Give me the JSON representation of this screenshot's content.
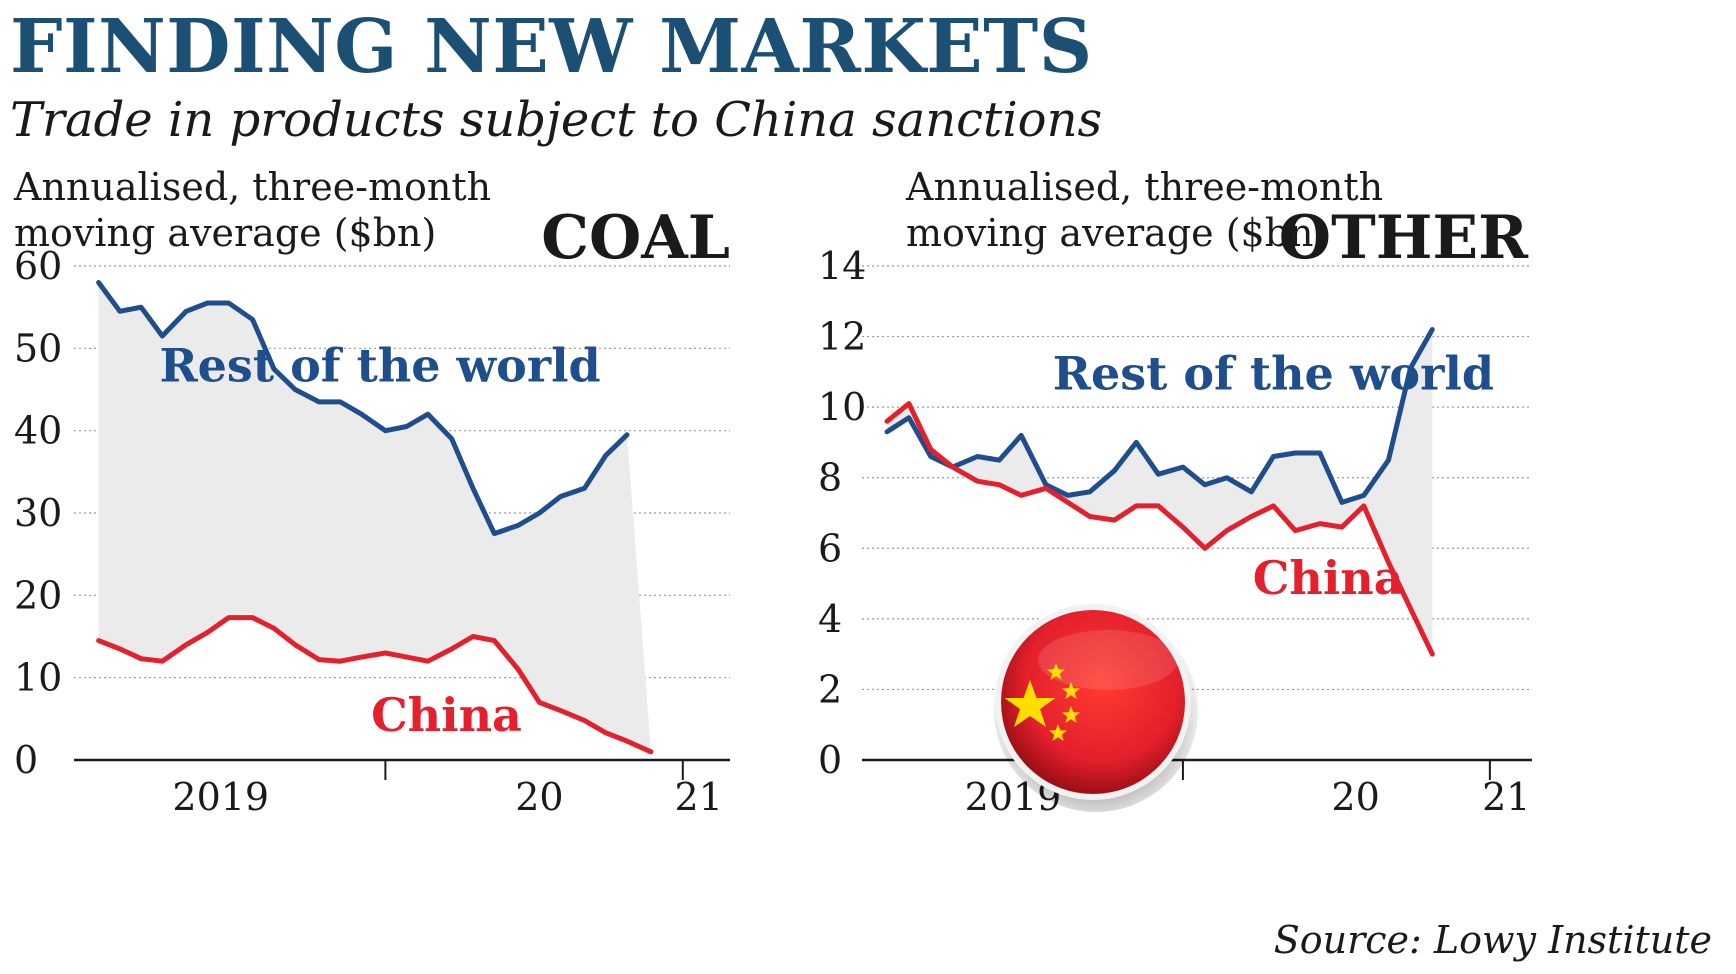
{
  "header": {
    "title": "FINDING NEW MARKETS",
    "subtitle": "Trade in products subject to China sanctions"
  },
  "source": "Source: Lowy Institute",
  "colors": {
    "title": "#1b4f73",
    "rest_of_world": "#1f4e8c",
    "china": "#e3202c",
    "fill": "#ebebeb",
    "grid": "#9a9a9a"
  },
  "flag_icon": "china-flag-icon",
  "chart_data": [
    {
      "type": "line",
      "title": "COAL",
      "ylabel_lines": [
        "Annualised, three-month",
        "moving average ($bn)"
      ],
      "ylim": [
        0,
        60
      ],
      "yticks": [
        0,
        10,
        20,
        30,
        40,
        50,
        60
      ],
      "xlim": [
        2018.8,
        2021.15
      ],
      "xtick_labels": [
        {
          "x": 2019.3,
          "label": "2019"
        },
        {
          "x": 2020.5,
          "label": "20"
        },
        {
          "x": 2021.1,
          "label": "21"
        }
      ],
      "xtick_marks": [
        2019.92,
        2021.04
      ],
      "grid": true,
      "shaded_between_series": true,
      "series": [
        {
          "name": "Rest of the world",
          "label_anchor": {
            "x": 2019.9,
            "y": 46
          },
          "x": [
            2018.84,
            2018.92,
            2019.0,
            2019.08,
            2019.17,
            2019.25,
            2019.33,
            2019.42,
            2019.5,
            2019.58,
            2019.67,
            2019.75,
            2019.83,
            2019.92,
            2020.0,
            2020.08,
            2020.17,
            2020.25,
            2020.33,
            2020.42,
            2020.5,
            2020.58,
            2020.67,
            2020.75,
            2020.83,
            2020.92,
            2021.0,
            2021.08
          ],
          "values": [
            58,
            54.5,
            55,
            51.5,
            54.5,
            55.5,
            55.5,
            53.5,
            47.5,
            45,
            43.5,
            43.5,
            42,
            40,
            40.5,
            42,
            39,
            33,
            27.5,
            28.5,
            30,
            32,
            33,
            37,
            39.5,
            null,
            null,
            null
          ]
        },
        {
          "name": "China",
          "label_anchor": {
            "x": 2020.15,
            "y": 3.5
          },
          "x": [
            2018.84,
            2018.92,
            2019.0,
            2019.08,
            2019.17,
            2019.25,
            2019.33,
            2019.42,
            2019.5,
            2019.58,
            2019.67,
            2019.75,
            2019.83,
            2019.92,
            2020.0,
            2020.08,
            2020.17,
            2020.25,
            2020.33,
            2020.42,
            2020.5,
            2020.58,
            2020.67,
            2020.75,
            2020.83,
            2020.92,
            2021.0,
            2021.08
          ],
          "values": [
            14.5,
            13.5,
            12.3,
            12,
            14,
            15.5,
            17.3,
            17.3,
            16,
            14,
            12.2,
            12,
            12.5,
            13,
            12.5,
            12,
            13.5,
            15,
            14.5,
            11,
            7,
            6,
            4.8,
            3.3,
            2.3,
            1,
            null,
            null
          ]
        }
      ]
    },
    {
      "type": "line",
      "title": "OTHER",
      "ylabel_lines": [
        "Annualised, three-month",
        "moving average ($bn)"
      ],
      "ylim": [
        0,
        14
      ],
      "yticks": [
        0,
        2,
        4,
        6,
        8,
        10,
        12,
        14
      ],
      "xlim": [
        2018.8,
        2021.15
      ],
      "xtick_labels": [
        {
          "x": 2019.3,
          "label": "2019"
        },
        {
          "x": 2020.55,
          "label": "20"
        },
        {
          "x": 2021.1,
          "label": "21"
        }
      ],
      "xtick_marks": [
        2019.92,
        2021.04
      ],
      "grid": true,
      "shaded_between_series": true,
      "series": [
        {
          "name": "Rest of the world",
          "label_anchor": {
            "x": 2020.25,
            "y": 10.5
          },
          "x": [
            2018.84,
            2018.92,
            2019.0,
            2019.08,
            2019.17,
            2019.25,
            2019.33,
            2019.42,
            2019.5,
            2019.58,
            2019.67,
            2019.75,
            2019.83,
            2019.92,
            2020.0,
            2020.08,
            2020.17,
            2020.25,
            2020.33,
            2020.42,
            2020.5,
            2020.58,
            2020.67,
            2020.75,
            2020.83,
            2020.92,
            2021.0,
            2021.08
          ],
          "values": [
            9.3,
            9.7,
            8.6,
            8.3,
            8.6,
            8.5,
            9.2,
            7.8,
            7.5,
            7.6,
            8.2,
            9,
            8.1,
            8.3,
            7.8,
            8,
            7.6,
            8.6,
            8.7,
            8.7,
            7.3,
            7.5,
            8.5,
            11.1,
            12.2,
            null,
            null,
            null
          ]
        },
        {
          "name": "China",
          "label_anchor": {
            "x": 2020.45,
            "y": 4.7
          },
          "x": [
            2018.84,
            2018.92,
            2019.0,
            2019.08,
            2019.17,
            2019.25,
            2019.33,
            2019.42,
            2019.5,
            2019.58,
            2019.67,
            2019.75,
            2019.83,
            2019.92,
            2020.0,
            2020.08,
            2020.17,
            2020.25,
            2020.33,
            2020.42,
            2020.5,
            2020.58,
            2020.67,
            2020.75,
            2020.83,
            2020.92,
            2021.0,
            2021.08
          ],
          "values": [
            9.6,
            10.1,
            8.8,
            8.3,
            7.9,
            7.8,
            7.5,
            7.7,
            7.3,
            6.9,
            6.8,
            7.2,
            7.2,
            6.6,
            6,
            6.5,
            6.9,
            7.2,
            6.5,
            6.7,
            6.6,
            7.2,
            5.6,
            4.3,
            3,
            null,
            null,
            null
          ]
        }
      ]
    }
  ]
}
